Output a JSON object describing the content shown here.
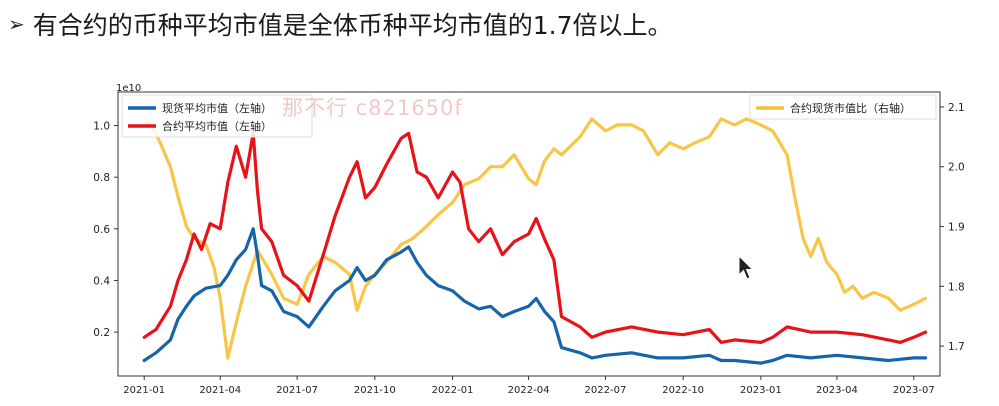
{
  "slide": {
    "bullet": "➢",
    "title": "有合约的币种平均市值是全体币种平均市值的1.7倍以上。"
  },
  "watermark": "那不行 c821650f",
  "colors": {
    "spot": "#1565a8",
    "contract": "#e8121a",
    "ratio": "#f7c033",
    "axis": "#333333"
  },
  "chart_data": {
    "type": "line",
    "left_axis_exponent": "1e10",
    "x_ticks": [
      "2021-01",
      "2021-04",
      "2021-07",
      "2021-10",
      "2022-01",
      "2022-04",
      "2022-07",
      "2022-10",
      "2023-01",
      "2023-04",
      "2023-07"
    ],
    "y_left_ticks": [
      "0.2",
      "0.4",
      "0.6",
      "0.8",
      "1.0"
    ],
    "y_right_ticks": [
      "1.7",
      "1.8",
      "1.9",
      "2.0",
      "2.1"
    ],
    "y_left_range": [
      0.03,
      1.13
    ],
    "y_right_range": [
      1.65,
      2.125
    ],
    "x_range": [
      "2020-12-01",
      "2023-08-01"
    ],
    "legend_left": [
      "现货平均市值（左轴）",
      "合约平均市值（左轴）"
    ],
    "legend_right": [
      "合约现货市值比（右轴）"
    ],
    "series": [
      {
        "name": "现货平均市值（左轴）",
        "axis": "left",
        "color": "#1565a8",
        "points": [
          [
            "2021-01-01",
            0.09
          ],
          [
            "2021-01-15",
            0.12
          ],
          [
            "2021-02-01",
            0.17
          ],
          [
            "2021-02-10",
            0.25
          ],
          [
            "2021-02-20",
            0.3
          ],
          [
            "2021-03-01",
            0.34
          ],
          [
            "2021-03-15",
            0.37
          ],
          [
            "2021-04-01",
            0.38
          ],
          [
            "2021-04-10",
            0.42
          ],
          [
            "2021-04-20",
            0.48
          ],
          [
            "2021-05-01",
            0.52
          ],
          [
            "2021-05-10",
            0.6
          ],
          [
            "2021-05-15",
            0.5
          ],
          [
            "2021-05-20",
            0.38
          ],
          [
            "2021-06-01",
            0.36
          ],
          [
            "2021-06-15",
            0.28
          ],
          [
            "2021-07-01",
            0.26
          ],
          [
            "2021-07-15",
            0.22
          ],
          [
            "2021-08-01",
            0.3
          ],
          [
            "2021-08-15",
            0.36
          ],
          [
            "2021-09-01",
            0.4
          ],
          [
            "2021-09-10",
            0.45
          ],
          [
            "2021-09-20",
            0.4
          ],
          [
            "2021-10-01",
            0.42
          ],
          [
            "2021-10-15",
            0.48
          ],
          [
            "2021-11-01",
            0.51
          ],
          [
            "2021-11-10",
            0.53
          ],
          [
            "2021-11-20",
            0.47
          ],
          [
            "2021-12-01",
            0.42
          ],
          [
            "2021-12-15",
            0.38
          ],
          [
            "2022-01-01",
            0.36
          ],
          [
            "2022-01-15",
            0.32
          ],
          [
            "2022-02-01",
            0.29
          ],
          [
            "2022-02-15",
            0.3
          ],
          [
            "2022-03-01",
            0.26
          ],
          [
            "2022-03-15",
            0.28
          ],
          [
            "2022-04-01",
            0.3
          ],
          [
            "2022-04-10",
            0.33
          ],
          [
            "2022-04-20",
            0.28
          ],
          [
            "2022-05-01",
            0.24
          ],
          [
            "2022-05-10",
            0.14
          ],
          [
            "2022-06-01",
            0.12
          ],
          [
            "2022-06-15",
            0.1
          ],
          [
            "2022-07-01",
            0.11
          ],
          [
            "2022-08-01",
            0.12
          ],
          [
            "2022-09-01",
            0.1
          ],
          [
            "2022-10-01",
            0.1
          ],
          [
            "2022-11-01",
            0.11
          ],
          [
            "2022-11-15",
            0.09
          ],
          [
            "2022-12-01",
            0.09
          ],
          [
            "2023-01-01",
            0.08
          ],
          [
            "2023-01-15",
            0.09
          ],
          [
            "2023-02-01",
            0.11
          ],
          [
            "2023-03-01",
            0.1
          ],
          [
            "2023-04-01",
            0.11
          ],
          [
            "2023-05-01",
            0.1
          ],
          [
            "2023-06-01",
            0.09
          ],
          [
            "2023-07-01",
            0.1
          ],
          [
            "2023-07-15",
            0.1
          ]
        ]
      },
      {
        "name": "合约平均市值（左轴）",
        "axis": "left",
        "color": "#e8121a",
        "points": [
          [
            "2021-01-01",
            0.18
          ],
          [
            "2021-01-15",
            0.21
          ],
          [
            "2021-02-01",
            0.3
          ],
          [
            "2021-02-10",
            0.4
          ],
          [
            "2021-02-20",
            0.48
          ],
          [
            "2021-03-01",
            0.58
          ],
          [
            "2021-03-10",
            0.52
          ],
          [
            "2021-03-20",
            0.62
          ],
          [
            "2021-04-01",
            0.6
          ],
          [
            "2021-04-10",
            0.78
          ],
          [
            "2021-04-20",
            0.92
          ],
          [
            "2021-05-01",
            0.8
          ],
          [
            "2021-05-10",
            0.97
          ],
          [
            "2021-05-15",
            0.75
          ],
          [
            "2021-05-20",
            0.6
          ],
          [
            "2021-06-01",
            0.55
          ],
          [
            "2021-06-15",
            0.42
          ],
          [
            "2021-07-01",
            0.38
          ],
          [
            "2021-07-15",
            0.32
          ],
          [
            "2021-08-01",
            0.5
          ],
          [
            "2021-08-15",
            0.65
          ],
          [
            "2021-09-01",
            0.8
          ],
          [
            "2021-09-10",
            0.86
          ],
          [
            "2021-09-20",
            0.72
          ],
          [
            "2021-10-01",
            0.76
          ],
          [
            "2021-10-15",
            0.85
          ],
          [
            "2021-11-01",
            0.95
          ],
          [
            "2021-11-10",
            0.97
          ],
          [
            "2021-11-20",
            0.82
          ],
          [
            "2021-12-01",
            0.8
          ],
          [
            "2021-12-15",
            0.72
          ],
          [
            "2022-01-01",
            0.82
          ],
          [
            "2022-01-10",
            0.78
          ],
          [
            "2022-01-20",
            0.6
          ],
          [
            "2022-02-01",
            0.55
          ],
          [
            "2022-02-15",
            0.6
          ],
          [
            "2022-03-01",
            0.5
          ],
          [
            "2022-03-15",
            0.55
          ],
          [
            "2022-04-01",
            0.58
          ],
          [
            "2022-04-10",
            0.64
          ],
          [
            "2022-04-20",
            0.56
          ],
          [
            "2022-05-01",
            0.48
          ],
          [
            "2022-05-10",
            0.26
          ],
          [
            "2022-06-01",
            0.22
          ],
          [
            "2022-06-15",
            0.18
          ],
          [
            "2022-07-01",
            0.2
          ],
          [
            "2022-08-01",
            0.22
          ],
          [
            "2022-09-01",
            0.2
          ],
          [
            "2022-10-01",
            0.19
          ],
          [
            "2022-11-01",
            0.21
          ],
          [
            "2022-11-15",
            0.16
          ],
          [
            "2022-12-01",
            0.17
          ],
          [
            "2023-01-01",
            0.16
          ],
          [
            "2023-01-15",
            0.18
          ],
          [
            "2023-02-01",
            0.22
          ],
          [
            "2023-03-01",
            0.2
          ],
          [
            "2023-04-01",
            0.2
          ],
          [
            "2023-05-01",
            0.19
          ],
          [
            "2023-06-01",
            0.17
          ],
          [
            "2023-06-15",
            0.16
          ],
          [
            "2023-07-01",
            0.18
          ],
          [
            "2023-07-15",
            0.2
          ]
        ]
      },
      {
        "name": "合约现货市值比（右轴）",
        "axis": "right",
        "color": "#f7c033",
        "points": [
          [
            "2021-01-01",
            2.08
          ],
          [
            "2021-01-10",
            2.07
          ],
          [
            "2021-01-20",
            2.04
          ],
          [
            "2021-02-01",
            2.0
          ],
          [
            "2021-02-10",
            1.95
          ],
          [
            "2021-02-20",
            1.9
          ],
          [
            "2021-03-01",
            1.88
          ],
          [
            "2021-03-15",
            1.87
          ],
          [
            "2021-03-25",
            1.83
          ],
          [
            "2021-04-01",
            1.78
          ],
          [
            "2021-04-10",
            1.68
          ],
          [
            "2021-04-20",
            1.74
          ],
          [
            "2021-05-01",
            1.8
          ],
          [
            "2021-05-15",
            1.86
          ],
          [
            "2021-06-01",
            1.82
          ],
          [
            "2021-06-15",
            1.78
          ],
          [
            "2021-07-01",
            1.77
          ],
          [
            "2021-07-15",
            1.82
          ],
          [
            "2021-08-01",
            1.85
          ],
          [
            "2021-08-15",
            1.84
          ],
          [
            "2021-09-01",
            1.82
          ],
          [
            "2021-09-10",
            1.76
          ],
          [
            "2021-09-20",
            1.8
          ],
          [
            "2021-10-01",
            1.82
          ],
          [
            "2021-10-15",
            1.84
          ],
          [
            "2021-11-01",
            1.87
          ],
          [
            "2021-11-15",
            1.88
          ],
          [
            "2021-12-01",
            1.9
          ],
          [
            "2021-12-15",
            1.92
          ],
          [
            "2022-01-01",
            1.94
          ],
          [
            "2022-01-15",
            1.97
          ],
          [
            "2022-02-01",
            1.98
          ],
          [
            "2022-02-15",
            2.0
          ],
          [
            "2022-03-01",
            2.0
          ],
          [
            "2022-03-15",
            2.02
          ],
          [
            "2022-04-01",
            1.98
          ],
          [
            "2022-04-10",
            1.97
          ],
          [
            "2022-04-20",
            2.01
          ],
          [
            "2022-05-01",
            2.03
          ],
          [
            "2022-05-10",
            2.02
          ],
          [
            "2022-06-01",
            2.05
          ],
          [
            "2022-06-15",
            2.08
          ],
          [
            "2022-07-01",
            2.06
          ],
          [
            "2022-07-15",
            2.07
          ],
          [
            "2022-08-01",
            2.07
          ],
          [
            "2022-08-15",
            2.06
          ],
          [
            "2022-09-01",
            2.02
          ],
          [
            "2022-09-15",
            2.04
          ],
          [
            "2022-10-01",
            2.03
          ],
          [
            "2022-10-15",
            2.04
          ],
          [
            "2022-11-01",
            2.05
          ],
          [
            "2022-11-15",
            2.08
          ],
          [
            "2022-12-01",
            2.07
          ],
          [
            "2022-12-15",
            2.08
          ],
          [
            "2023-01-01",
            2.07
          ],
          [
            "2023-01-15",
            2.06
          ],
          [
            "2023-02-01",
            2.02
          ],
          [
            "2023-02-10",
            1.95
          ],
          [
            "2023-02-20",
            1.88
          ],
          [
            "2023-03-01",
            1.85
          ],
          [
            "2023-03-10",
            1.88
          ],
          [
            "2023-03-20",
            1.84
          ],
          [
            "2023-04-01",
            1.82
          ],
          [
            "2023-04-10",
            1.79
          ],
          [
            "2023-04-20",
            1.8
          ],
          [
            "2023-05-01",
            1.78
          ],
          [
            "2023-05-15",
            1.79
          ],
          [
            "2023-06-01",
            1.78
          ],
          [
            "2023-06-15",
            1.76
          ],
          [
            "2023-07-01",
            1.77
          ],
          [
            "2023-07-15",
            1.78
          ]
        ]
      }
    ]
  }
}
